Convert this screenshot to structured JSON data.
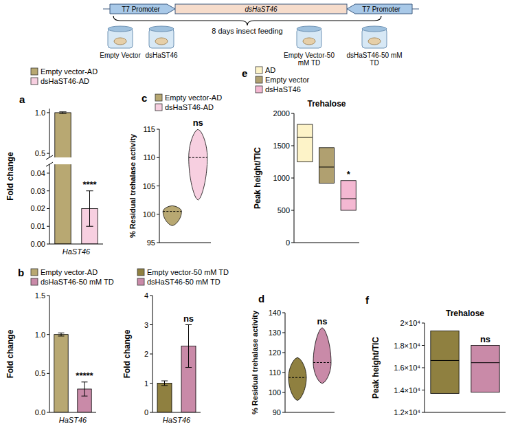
{
  "diagram": {
    "construct": [
      "T7 Promoter",
      "dsHaST46",
      "T7 Promoter"
    ],
    "caption": "8 days insect feeding",
    "groups": [
      "Empty Vector",
      "dsHaST46",
      "Empty Vector-50 mM TD",
      "dsHaST46-50 mM TD"
    ]
  },
  "chart_data": [
    {
      "type": "bar",
      "label": "a",
      "categories": [
        "HaST46"
      ],
      "ylabel": "Fold change",
      "series": [
        {
          "name": "Empty vector-AD",
          "color": "#b8a872",
          "values": [
            1.0
          ],
          "errors": [
            0.01
          ]
        },
        {
          "name": "dsHaST46-AD",
          "color": "#f7cfe0",
          "values": [
            0.02
          ],
          "errors": [
            0.01
          ]
        }
      ],
      "ylim": [
        0,
        1.05
      ],
      "ybreak": [
        0.045,
        0.45
      ],
      "yticks": [
        {
          "value": 0,
          "label": "0.00"
        },
        {
          "value": 0.01,
          "label": "0.01"
        },
        {
          "value": 0.02,
          "label": "0.02"
        },
        {
          "value": 0.03,
          "label": "0.03"
        },
        {
          "value": 0.04,
          "label": "0.04"
        },
        0.5,
        {
          "value": 1,
          "label": "1.0"
        }
      ],
      "legend": "top",
      "significance": "****"
    },
    {
      "type": "bar",
      "label": "b",
      "categories": [
        "HaST46"
      ],
      "ylabel": "Fold change",
      "series": [
        {
          "name": "Empty vector-AD",
          "color": "#b8a872",
          "values": [
            1.0
          ],
          "errors": [
            0.02
          ]
        },
        {
          "name": "dsHaST46-50 mM TD",
          "color": "#c98aa8",
          "values": [
            0.3
          ],
          "errors": [
            0.09
          ]
        }
      ],
      "ylim": [
        0,
        1.5
      ],
      "yticks": [
        {
          "value": 0,
          "label": "0.0"
        },
        0.5,
        {
          "value": 1,
          "label": "1.0"
        },
        1.5
      ],
      "legend": "top",
      "significance": "*****"
    },
    {
      "type": "bar",
      "categories": [
        "HaST46"
      ],
      "ylabel": "Fold change",
      "series": [
        {
          "name": "Empty vector-50 mM TD",
          "color": "#8f8040",
          "values": [
            1.0
          ],
          "errors": [
            0.08
          ]
        },
        {
          "name": "dsHaST46-50 mM TD",
          "color": "#c98aa8",
          "values": [
            2.27
          ],
          "errors": [
            0.73
          ]
        }
      ],
      "ylim": [
        0,
        4
      ],
      "yticks": [
        0,
        1,
        2,
        3,
        4
      ],
      "legend": "top",
      "significance": "ns"
    },
    {
      "type": "violin",
      "label": "c",
      "ylabel": "% Residual trehalase activity",
      "tick_labels": "y",
      "series": [
        {
          "name": "Empty vector-AD",
          "color": "#b8a872",
          "min": 98,
          "median": 100.5,
          "max": 101.5
        },
        {
          "name": "dsHaST46-AD",
          "color": "#f7cfe0",
          "min": 102.5,
          "median": 110,
          "max": 115
        }
      ],
      "ylim": [
        95,
        115
      ],
      "yticks": [
        95,
        100,
        105,
        110,
        115
      ],
      "legend": "top",
      "significance": "ns"
    },
    {
      "type": "violin",
      "label": "d",
      "ylabel": "% Residual trehalase activity",
      "tick_labels": "y",
      "series": [
        {
          "color": "#8f8040",
          "min": 96,
          "median": 107.5,
          "max": 117.5
        },
        {
          "color": "#c98aa8",
          "min": 104.5,
          "median": 115,
          "max": 132.5
        }
      ],
      "ylim": [
        90,
        140
      ],
      "yticks": [
        90,
        100,
        110,
        120,
        130,
        140
      ],
      "significance": "ns"
    },
    {
      "type": "box",
      "label": "e",
      "title": "Trehalose",
      "ylabel": "Peak height/TIC",
      "tick_labels": "y",
      "series": [
        {
          "name": "AD",
          "color": "#fdf3c8",
          "min": 1250,
          "median": 1630,
          "max": 1830
        },
        {
          "name": "Empty vector",
          "color": "#b0a070",
          "min": 920,
          "median": 1170,
          "max": 1470
        },
        {
          "name": "dsHaST46",
          "color": "#f4b8d2",
          "min": 500,
          "median": 680,
          "max": 960
        }
      ],
      "ylim": [
        0,
        2000
      ],
      "yticks": [
        0,
        500,
        1000,
        1500,
        2000
      ],
      "legend": "top",
      "significance": "*"
    },
    {
      "type": "box",
      "label": "f",
      "title": "Trehalose",
      "ylabel": "Peak height/TIC",
      "tick_labels": "y",
      "series": [
        {
          "color": "#8f8040",
          "min": 13700,
          "median": 16650,
          "max": 19300
        },
        {
          "color": "#c98aa8",
          "min": 13800,
          "median": 16450,
          "max": 18000
        }
      ],
      "ylim": [
        12000,
        20000
      ],
      "yticks": [
        {
          "value": 12000,
          "label": "1.2×10⁴"
        },
        {
          "value": 14000,
          "label": "1.4×10⁴"
        },
        {
          "value": 16000,
          "label": "1.6×10⁴"
        },
        {
          "value": 18000,
          "label": "1.8×10⁴"
        },
        {
          "value": 20000,
          "label": "2×10⁴"
        }
      ],
      "significance": "ns"
    }
  ]
}
